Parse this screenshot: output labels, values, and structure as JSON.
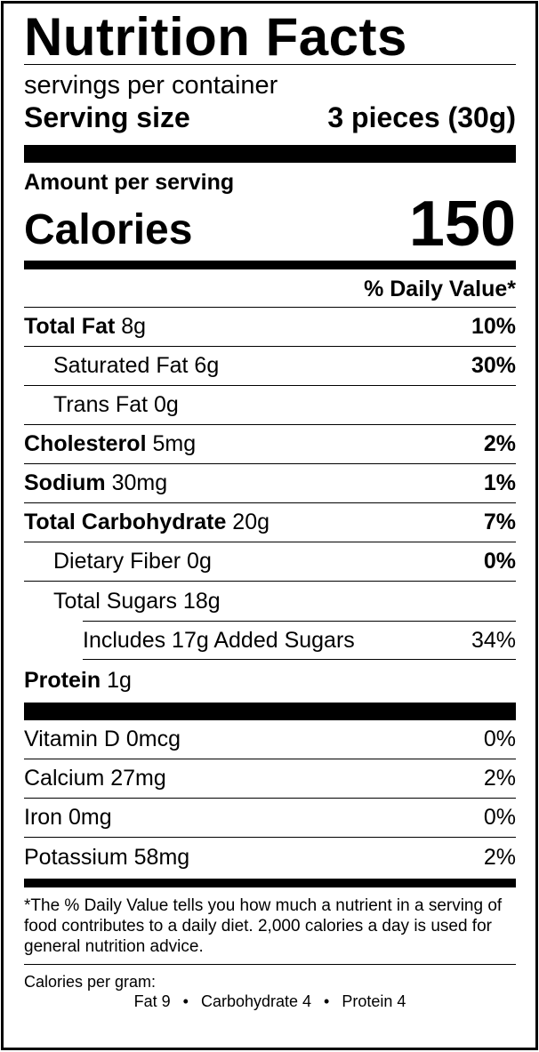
{
  "title": "Nutrition Facts",
  "servings_per_container": "servings per container",
  "serving_size": {
    "label": "Serving size",
    "value": "3 pieces (30g)"
  },
  "amount_per_serving": "Amount per serving",
  "calories": {
    "label": "Calories",
    "value": "150"
  },
  "daily_value_header": "% Daily Value*",
  "nutrients": {
    "total_fat": {
      "name": "Total Fat",
      "amount": "8g",
      "dv": "10%"
    },
    "saturated_fat": {
      "name": "Saturated Fat 6g",
      "dv": "30%"
    },
    "trans_fat": {
      "name": "Trans Fat 0g"
    },
    "cholesterol": {
      "name": "Cholesterol",
      "amount": "5mg",
      "dv": "2%"
    },
    "sodium": {
      "name": "Sodium",
      "amount": "30mg",
      "dv": "1%"
    },
    "total_carbohydrate": {
      "name": "Total Carbohydrate",
      "amount": "20g",
      "dv": "7%"
    },
    "dietary_fiber": {
      "name": "Dietary Fiber 0g",
      "dv": "0%"
    },
    "total_sugars": {
      "name": "Total Sugars 18g"
    },
    "added_sugars": {
      "name": "Includes 17g Added Sugars",
      "dv": "34%"
    },
    "protein": {
      "name": "Protein",
      "amount": "1g"
    }
  },
  "vitamins": [
    {
      "name": "Vitamin D 0mcg",
      "dv": "0%"
    },
    {
      "name": "Calcium 27mg",
      "dv": "2%"
    },
    {
      "name": "Iron 0mg",
      "dv": "0%"
    },
    {
      "name": "Potassium 58mg",
      "dv": "2%"
    }
  ],
  "footnote": "*The % Daily Value tells you how much a nutrient in a serving of food contributes to a daily diet. 2,000 calories a day is used for general nutrition advice.",
  "calories_per_gram": {
    "label": "Calories per gram:",
    "fat": "Fat 9",
    "carbohydrate": "Carbohydrate 4",
    "protein": "Protein 4",
    "separator": "•"
  }
}
